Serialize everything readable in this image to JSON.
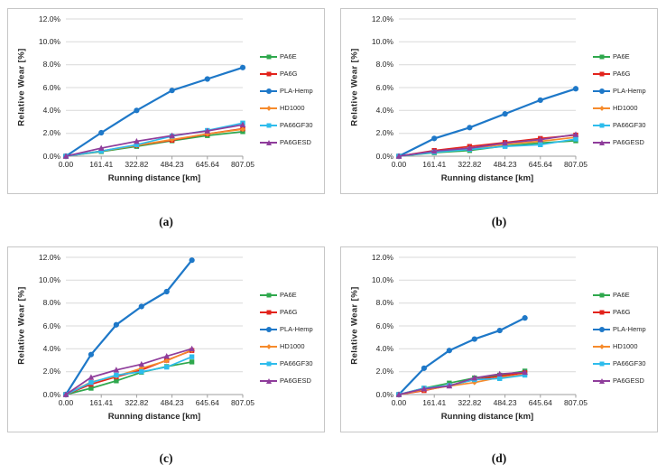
{
  "figure": {
    "background": "#ffffff",
    "gridline_color": "#d9d9d9",
    "axis_color": "#9e9e9e",
    "text_color": "#262626"
  },
  "chart_data": [
    {
      "id": "a",
      "caption": "(a)",
      "type": "line",
      "xlabel": "Running distance [km]",
      "ylabel": "Relative Wear [%]",
      "legend_position": "right",
      "grid": true,
      "xlim": [
        0,
        807.05
      ],
      "ylim": [
        0,
        12
      ],
      "x_tick_values": [
        0,
        161.41,
        322.82,
        484.23,
        645.64,
        807.05
      ],
      "x_tick_labels": [
        "0.00",
        "161.41",
        "322.82",
        "484.23",
        "645.64",
        "807.05"
      ],
      "y_tick_values": [
        0,
        2,
        4,
        6,
        8,
        10,
        12
      ],
      "y_tick_labels": [
        "0.0%",
        "2.0%",
        "4.0%",
        "6.0%",
        "8.0%",
        "10.0%",
        "12.0%"
      ],
      "x": [
        0,
        161.41,
        322.82,
        484.23,
        645.64,
        807.05
      ],
      "series": [
        {
          "name": "PA6E",
          "color": "#2fa84d",
          "marker": "square",
          "values": [
            0,
            0.4,
            0.85,
            1.35,
            1.8,
            2.15
          ]
        },
        {
          "name": "PA6G",
          "color": "#e2231c",
          "marker": "square",
          "values": [
            0,
            0.45,
            0.95,
            1.4,
            1.95,
            2.4
          ]
        },
        {
          "name": "PLA-Hemp",
          "color": "#1e78c8",
          "marker": "circle",
          "values": [
            0,
            2.05,
            4.0,
            5.75,
            6.75,
            7.75
          ]
        },
        {
          "name": "HD1000",
          "color": "#f68b2c",
          "marker": "diamond",
          "values": [
            0,
            0.45,
            0.95,
            1.45,
            1.95,
            2.35
          ]
        },
        {
          "name": "PA66GF30",
          "color": "#2ebcec",
          "marker": "square",
          "values": [
            0,
            0.45,
            1.0,
            1.75,
            2.25,
            2.9
          ]
        },
        {
          "name": "PA6GESD",
          "color": "#8f3d9b",
          "marker": "triangle",
          "values": [
            0,
            0.7,
            1.3,
            1.8,
            2.2,
            2.75
          ]
        }
      ]
    },
    {
      "id": "b",
      "caption": "(b)",
      "type": "line",
      "xlabel": "Running distance [km]",
      "ylabel": "Relative Wear [%]",
      "legend_position": "right",
      "grid": true,
      "xlim": [
        0,
        807.05
      ],
      "ylim": [
        0,
        12
      ],
      "x_tick_values": [
        0,
        161.41,
        322.82,
        484.23,
        645.64,
        807.05
      ],
      "x_tick_labels": [
        "0.00",
        "161.41",
        "322.82",
        "484.23",
        "645.64",
        "807.05"
      ],
      "y_tick_values": [
        0,
        2,
        4,
        6,
        8,
        10,
        12
      ],
      "y_tick_labels": [
        "0.0%",
        "2.0%",
        "4.0%",
        "6.0%",
        "8.0%",
        "10.0%",
        "12.0%"
      ],
      "x": [
        0,
        161.41,
        322.82,
        484.23,
        645.64,
        807.05
      ],
      "series": [
        {
          "name": "PA6E",
          "color": "#2fa84d",
          "marker": "square",
          "values": [
            0,
            0.3,
            0.5,
            0.9,
            1.15,
            1.35
          ]
        },
        {
          "name": "PA6G",
          "color": "#e2231c",
          "marker": "square",
          "values": [
            0,
            0.5,
            0.85,
            1.2,
            1.55,
            1.85
          ]
        },
        {
          "name": "PLA-Hemp",
          "color": "#1e78c8",
          "marker": "circle",
          "values": [
            0,
            1.55,
            2.5,
            3.7,
            4.9,
            5.9
          ]
        },
        {
          "name": "HD1000",
          "color": "#f68b2c",
          "marker": "diamond",
          "values": [
            0,
            0.4,
            0.65,
            1.05,
            1.3,
            1.65
          ]
        },
        {
          "name": "PA66GF30",
          "color": "#2ebcec",
          "marker": "square",
          "values": [
            0,
            0.35,
            0.6,
            0.85,
            1.0,
            1.5
          ]
        },
        {
          "name": "PA6GESD",
          "color": "#8f3d9b",
          "marker": "triangle",
          "values": [
            0,
            0.45,
            0.7,
            1.15,
            1.45,
            1.9
          ]
        }
      ]
    },
    {
      "id": "c",
      "caption": "(c)",
      "type": "line",
      "xlabel": "Running distance [km]",
      "ylabel": "Relative Wear [%]",
      "legend_position": "right",
      "grid": true,
      "xlim": [
        0,
        807.05
      ],
      "ylim": [
        0,
        12
      ],
      "x_tick_values": [
        0,
        161.41,
        322.82,
        484.23,
        645.64,
        807.05
      ],
      "x_tick_labels": [
        "0.00",
        "161.41",
        "322.82",
        "484.23",
        "645.64",
        "807.05"
      ],
      "y_tick_values": [
        0,
        2,
        4,
        6,
        8,
        10,
        12
      ],
      "y_tick_labels": [
        "0.0%",
        "2.0%",
        "4.0%",
        "6.0%",
        "8.0%",
        "10.0%",
        "12.0%"
      ],
      "x": [
        0,
        115,
        230,
        345,
        460,
        575
      ],
      "series": [
        {
          "name": "PA6E",
          "color": "#2fa84d",
          "marker": "square",
          "values": [
            0,
            0.55,
            1.2,
            1.95,
            2.45,
            2.85
          ]
        },
        {
          "name": "PA6G",
          "color": "#e2231c",
          "marker": "square",
          "values": [
            0,
            0.9,
            1.55,
            2.15,
            3.0,
            3.85
          ]
        },
        {
          "name": "PLA-Hemp",
          "color": "#1e78c8",
          "marker": "circle",
          "values": [
            0,
            3.5,
            6.1,
            7.7,
            9.0,
            11.75
          ]
        },
        {
          "name": "HD1000",
          "color": "#f68b2c",
          "marker": "diamond",
          "values": [
            0,
            1.1,
            1.6,
            2.3,
            2.95,
            3.9
          ]
        },
        {
          "name": "PA66GF30",
          "color": "#2ebcec",
          "marker": "square",
          "values": [
            0,
            1.05,
            1.7,
            2.0,
            2.4,
            3.3
          ]
        },
        {
          "name": "PA6GESD",
          "color": "#8f3d9b",
          "marker": "triangle",
          "values": [
            0,
            1.5,
            2.15,
            2.65,
            3.35,
            4.0
          ]
        }
      ]
    },
    {
      "id": "d",
      "caption": "(d)",
      "type": "line",
      "xlabel": "Running distance [km]",
      "ylabel": "Relative Wear [%]",
      "legend_position": "right",
      "grid": true,
      "xlim": [
        0,
        807.05
      ],
      "ylim": [
        0,
        12
      ],
      "x_tick_values": [
        0,
        161.41,
        322.82,
        484.23,
        645.64,
        807.05
      ],
      "x_tick_labels": [
        "0.00",
        "161.41",
        "322.82",
        "484.23",
        "645.64",
        "807.05"
      ],
      "y_tick_values": [
        0,
        2,
        4,
        6,
        8,
        10,
        12
      ],
      "y_tick_labels": [
        "0.0%",
        "2.0%",
        "4.0%",
        "6.0%",
        "8.0%",
        "10.0%",
        "12.0%"
      ],
      "x": [
        0,
        115,
        230,
        345,
        460,
        575
      ],
      "series": [
        {
          "name": "PA6E",
          "color": "#2fa84d",
          "marker": "square",
          "values": [
            0,
            0.55,
            1.0,
            1.45,
            1.7,
            2.05
          ]
        },
        {
          "name": "PA6G",
          "color": "#e2231c",
          "marker": "square",
          "values": [
            0,
            0.35,
            0.8,
            1.3,
            1.6,
            1.9
          ]
        },
        {
          "name": "PLA-Hemp",
          "color": "#1e78c8",
          "marker": "circle",
          "values": [
            0,
            2.3,
            3.85,
            4.85,
            5.6,
            6.7
          ]
        },
        {
          "name": "HD1000",
          "color": "#f68b2c",
          "marker": "diamond",
          "values": [
            0,
            0.4,
            0.75,
            1.05,
            1.5,
            1.75
          ]
        },
        {
          "name": "PA66GF30",
          "color": "#2ebcec",
          "marker": "square",
          "values": [
            0,
            0.55,
            0.8,
            1.3,
            1.4,
            1.7
          ]
        },
        {
          "name": "PA6GESD",
          "color": "#8f3d9b",
          "marker": "triangle",
          "values": [
            0,
            0.5,
            0.75,
            1.45,
            1.8,
            1.95
          ]
        }
      ]
    }
  ]
}
